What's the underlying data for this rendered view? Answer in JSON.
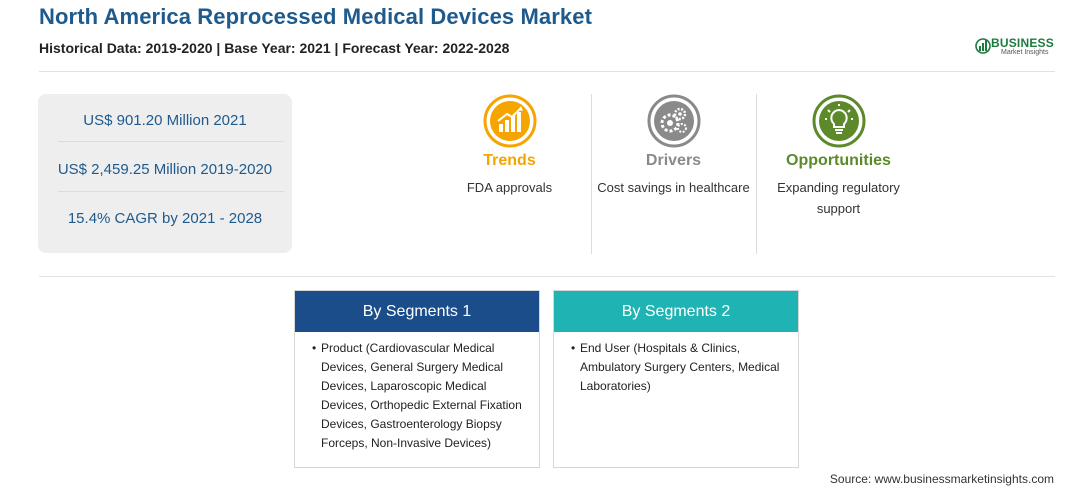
{
  "header": {
    "title": "North America Reprocessed Medical Devices Market",
    "subtitle": "Historical Data: 2019-2020 | Base Year: 2021 | Forecast Year: 2022-2028"
  },
  "logo": {
    "word": "BUSINESS",
    "sub": "Market Insights"
  },
  "stats": [
    {
      "text": "US$ 901.20 Million 2021"
    },
    {
      "text": "US$ 2,459.25 Million 2019-2020"
    },
    {
      "text": "15.4% CAGR by 2021 - 2028"
    }
  ],
  "factors": [
    {
      "title": "Trends",
      "description": "FDA approvals",
      "color": "#f5a400",
      "icon": "growth-chart-icon"
    },
    {
      "title": "Drivers",
      "description": "Cost savings in healthcare",
      "color": "#8a8a8a",
      "icon": "gears-icon"
    },
    {
      "title": "Opportunities",
      "description": "Expanding regulatory support",
      "color": "#5c8a2a",
      "icon": "lightbulb-icon"
    }
  ],
  "segments": [
    {
      "title": "By Segments 1",
      "color": "#1b4d8a",
      "bullet": "•",
      "text": "Product (Cardiovascular Medical Devices, General Surgery Medical Devices, Laparoscopic Medical Devices, Orthopedic External Fixation Devices, Gastroenterology Biopsy Forceps, Non-Invasive Devices)"
    },
    {
      "title": "By Segments 2",
      "color": "#20b3b3",
      "bullet": "•",
      "text": "End User (Hospitals & Clinics, Ambulatory Surgery Centers, Medical Laboratories)"
    }
  ],
  "source": "Source: www.businessmarketinsights.com"
}
